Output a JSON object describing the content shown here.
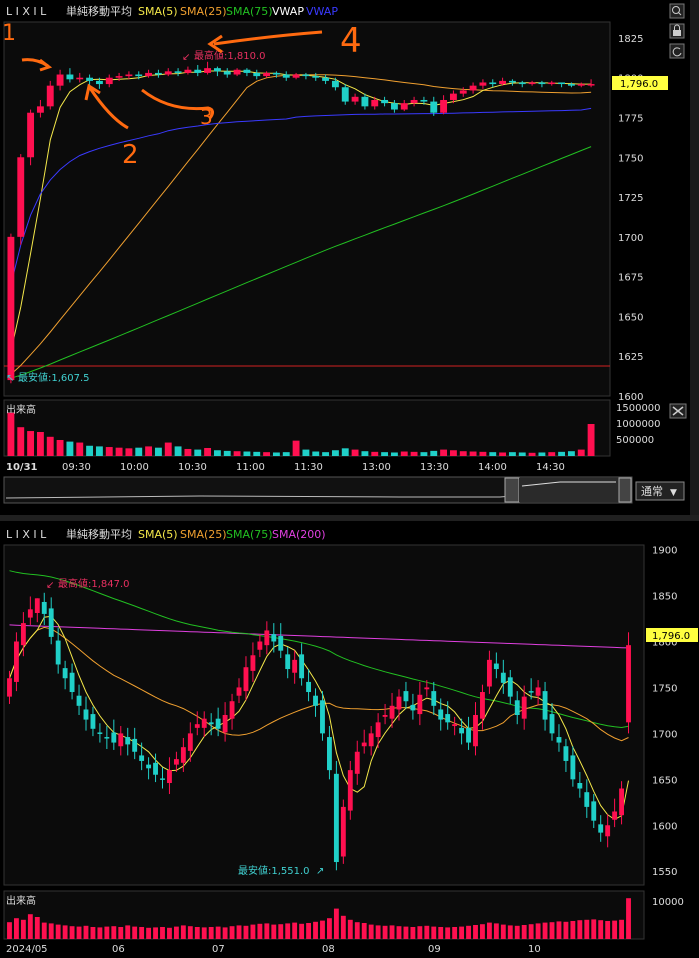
{
  "top_chart": {
    "brand": "L I X I L",
    "indicator_group": "単純移動平均",
    "legend": [
      {
        "label": "SMA(5)",
        "color": "#f4e84a"
      },
      {
        "label": "SMA(25)",
        "color": "#f0a030"
      },
      {
        "label": "SMA(75)",
        "color": "#22c022"
      },
      {
        "label": "VWAP",
        "color": "#ffffff"
      },
      {
        "label": "VWAP",
        "color": "#3a3aff"
      }
    ],
    "high_label": "最高値:1,810.0",
    "low_label": "最安値:1,607.5",
    "last_price": "1,796.0",
    "y_ticks": [
      1825,
      1800,
      1775,
      1750,
      1725,
      1700,
      1675,
      1650,
      1625,
      1600
    ],
    "y_range": [
      1600,
      1835
    ],
    "x_ticks": [
      "10/31",
      "09:30",
      "10:00",
      "10:30",
      "11:00",
      "11:30",
      "13:00",
      "13:30",
      "14:00",
      "14:30"
    ],
    "annotations": [
      "1",
      "2",
      "3",
      "4"
    ],
    "volume_label": "出来高",
    "volume_ticks": [
      "1500000",
      "1000000",
      "500000"
    ],
    "mode_select": "通常",
    "mode_arrow": "▼"
  },
  "bottom_chart": {
    "brand": "L I X I L",
    "indicator_group": "単純移動平均",
    "legend": [
      {
        "label": "SMA(5)",
        "color": "#f4e84a"
      },
      {
        "label": "SMA(25)",
        "color": "#f0a030"
      },
      {
        "label": "SMA(75)",
        "color": "#22c022"
      },
      {
        "label": "SMA(200)",
        "color": "#e040e0"
      }
    ],
    "high_label": "最高値:1,847.0",
    "low_label": "最安値:1,551.0",
    "last_price": "1,796.0",
    "y_ticks": [
      1900,
      1850,
      1800,
      1750,
      1700,
      1650,
      1600,
      1550
    ],
    "y_range": [
      1535,
      1905
    ],
    "x_ticks": [
      "2024/05",
      "06",
      "07",
      "08",
      "09",
      "10"
    ],
    "volume_label": "出来高",
    "volume_ticks": [
      "10000"
    ]
  },
  "chart_data": [
    {
      "type": "candlestick",
      "title": "",
      "period": "intraday 10/31",
      "close_last": 1796.0,
      "high": 1810.0,
      "low": 1607.5,
      "candles": [
        [
          1610,
          1700,
          1608,
          1702
        ],
        [
          1700,
          1750,
          1695,
          1752
        ],
        [
          1750,
          1778,
          1745,
          1780
        ],
        [
          1778,
          1782,
          1775,
          1786
        ],
        [
          1782,
          1795,
          1780,
          1798
        ],
        [
          1795,
          1802,
          1792,
          1805
        ],
        [
          1802,
          1799,
          1797,
          1806
        ],
        [
          1799,
          1800,
          1797,
          1803
        ],
        [
          1800,
          1798,
          1795,
          1802
        ],
        [
          1798,
          1796,
          1793,
          1800
        ],
        [
          1796,
          1800,
          1794,
          1802
        ],
        [
          1800,
          1801,
          1798,
          1803
        ],
        [
          1801,
          1802,
          1799,
          1804
        ],
        [
          1802,
          1801,
          1799,
          1804
        ],
        [
          1801,
          1803,
          1800,
          1805
        ],
        [
          1803,
          1802,
          1800,
          1805
        ],
        [
          1802,
          1804,
          1801,
          1806
        ],
        [
          1804,
          1803,
          1801,
          1806
        ],
        [
          1803,
          1805,
          1802,
          1807
        ],
        [
          1805,
          1803,
          1801,
          1808
        ],
        [
          1803,
          1806,
          1802,
          1810
        ],
        [
          1806,
          1804,
          1801,
          1807
        ],
        [
          1804,
          1802,
          1800,
          1806
        ],
        [
          1802,
          1805,
          1801,
          1806
        ],
        [
          1805,
          1803,
          1801,
          1806
        ],
        [
          1803,
          1801,
          1799,
          1805
        ],
        [
          1801,
          1803,
          1800,
          1804
        ],
        [
          1803,
          1802,
          1800,
          1804
        ],
        [
          1802,
          1800,
          1798,
          1804
        ],
        [
          1800,
          1802,
          1799,
          1803
        ],
        [
          1802,
          1801,
          1799,
          1803
        ],
        [
          1801,
          1800,
          1798,
          1803
        ],
        [
          1800,
          1798,
          1796,
          1802
        ],
        [
          1798,
          1794,
          1792,
          1800
        ],
        [
          1794,
          1785,
          1783,
          1796
        ],
        [
          1785,
          1788,
          1783,
          1790
        ],
        [
          1788,
          1782,
          1780,
          1790
        ],
        [
          1782,
          1786,
          1780,
          1788
        ],
        [
          1786,
          1784,
          1782,
          1788
        ],
        [
          1784,
          1780,
          1778,
          1786
        ],
        [
          1780,
          1784,
          1779,
          1786
        ],
        [
          1784,
          1786,
          1782,
          1788
        ],
        [
          1786,
          1785,
          1783,
          1788
        ],
        [
          1785,
          1778,
          1776,
          1788
        ],
        [
          1778,
          1786,
          1777,
          1789
        ],
        [
          1786,
          1790,
          1784,
          1792
        ],
        [
          1790,
          1792,
          1788,
          1794
        ],
        [
          1792,
          1795,
          1790,
          1797
        ],
        [
          1795,
          1797,
          1793,
          1799
        ],
        [
          1797,
          1796,
          1794,
          1799
        ],
        [
          1796,
          1798,
          1795,
          1800
        ],
        [
          1798,
          1797,
          1795,
          1799
        ],
        [
          1797,
          1796,
          1794,
          1798
        ],
        [
          1796,
          1797,
          1795,
          1798
        ],
        [
          1797,
          1796,
          1794,
          1798
        ],
        [
          1796,
          1797,
          1795,
          1798
        ],
        [
          1797,
          1796,
          1794,
          1797
        ],
        [
          1796,
          1795,
          1794,
          1797
        ],
        [
          1795,
          1796,
          1794,
          1797
        ],
        [
          1796,
          1796,
          1794,
          1799
        ]
      ],
      "volume": [
        1350000,
        900000,
        780000,
        750000,
        600000,
        500000,
        450000,
        420000,
        320000,
        300000,
        280000,
        260000,
        240000,
        260000,
        300000,
        260000,
        420000,
        300000,
        220000,
        200000,
        250000,
        180000,
        160000,
        150000,
        140000,
        130000,
        120000,
        110000,
        120000,
        480000,
        200000,
        140000,
        120000,
        180000,
        240000,
        200000,
        150000,
        130000,
        120000,
        110000,
        140000,
        130000,
        120000,
        160000,
        200000,
        180000,
        150000,
        140000,
        130000,
        120000,
        110000,
        120000,
        110000,
        100000,
        110000,
        120000,
        130000,
        150000,
        200000,
        1000000
      ]
    },
    {
      "type": "candlestick",
      "title": "",
      "period": "daily 2024/05 - 10",
      "close_last": 1796.0,
      "high": 1847.0,
      "low": 1551.0,
      "closes": [
        1760,
        1800,
        1820,
        1835,
        1847,
        1830,
        1805,
        1775,
        1760,
        1745,
        1730,
        1715,
        1705,
        1700,
        1695,
        1690,
        1700,
        1688,
        1680,
        1670,
        1662,
        1655,
        1650,
        1660,
        1672,
        1685,
        1700,
        1710,
        1716,
        1710,
        1705,
        1720,
        1735,
        1750,
        1772,
        1785,
        1800,
        1812,
        1800,
        1790,
        1770,
        1780,
        1760,
        1745,
        1730,
        1700,
        1660,
        1560,
        1620,
        1660,
        1680,
        1690,
        1700,
        1712,
        1720,
        1730,
        1740,
        1735,
        1725,
        1742,
        1750,
        1730,
        1715,
        1712,
        1710,
        1700,
        1690,
        1720,
        1745,
        1780,
        1770,
        1755,
        1740,
        1720,
        1740,
        1745,
        1750,
        1715,
        1700,
        1690,
        1670,
        1650,
        1640,
        1620,
        1605,
        1592,
        1600,
        1615,
        1640,
        1796
      ],
      "volume": [
        4200,
        5200,
        4800,
        6200,
        5500,
        4100,
        3900,
        3600,
        3400,
        3200,
        3100,
        3300,
        3000,
        2900,
        3100,
        3200,
        3000,
        3400,
        3100,
        3000,
        2800,
        2900,
        3000,
        2800,
        3100,
        3400,
        3200,
        3000,
        2900,
        3000,
        3100,
        2900,
        3200,
        3400,
        3300,
        3600,
        3800,
        3900,
        3600,
        3700,
        3900,
        4100,
        3800,
        4000,
        4300,
        4600,
        5200,
        7600,
        5800,
        4800,
        4200,
        4000,
        3600,
        3400,
        3300,
        3400,
        3200,
        3100,
        3000,
        3200,
        3300,
        3100,
        3000,
        2900,
        3000,
        3100,
        3300,
        3500,
        3700,
        4100,
        3900,
        3600,
        3400,
        3300,
        3500,
        3700,
        3900,
        4100,
        4200,
        4400,
        4300,
        4500,
        4700,
        4800,
        4900,
        4700,
        4500,
        4600,
        4800,
        10200
      ],
      "sma200_start": 1818,
      "sma200_end": 1793
    }
  ]
}
